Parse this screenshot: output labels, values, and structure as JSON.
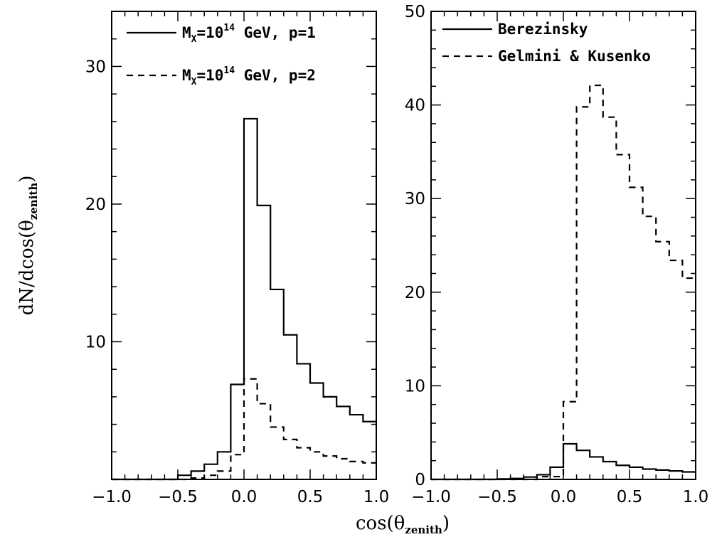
{
  "axis_titles": {
    "y": "dN/dcos(θ",
    "y_sub": "zenith",
    "y_close": ")",
    "x": "cos(θ",
    "x_sub": "zenith",
    "x_close": ")"
  },
  "chart_data": [
    {
      "type": "line",
      "step": true,
      "xlim": [
        -1.0,
        1.0
      ],
      "ylim": [
        0,
        34
      ],
      "x_ticks": [
        -1.0,
        -0.5,
        0.0,
        0.5,
        1.0
      ],
      "x_tick_labels": [
        "−1.0",
        "−0.5",
        "0.0",
        "0.5",
        "1.0"
      ],
      "y_ticks": [
        10,
        20,
        30
      ],
      "y_tick_labels": [
        "10",
        "20",
        "30"
      ],
      "bin_edges": [
        -1.0,
        -0.9,
        -0.8,
        -0.7,
        -0.6,
        -0.5,
        -0.4,
        -0.3,
        -0.2,
        -0.1,
        0.0,
        0.1,
        0.2,
        0.3,
        0.4,
        0.5,
        0.6,
        0.7,
        0.8,
        0.9,
        1.0
      ],
      "series": [
        {
          "legend": [
            "M",
            "X",
            "=10",
            "14",
            " GeV, p=1"
          ],
          "style": "solid",
          "values": [
            0.0,
            0.0,
            0.0,
            0.0,
            0.0,
            0.3,
            0.6,
            1.1,
            2.0,
            6.9,
            26.2,
            19.9,
            13.8,
            10.5,
            8.4,
            7.0,
            6.0,
            5.3,
            4.7,
            4.2
          ]
        },
        {
          "legend": [
            "M",
            "X",
            "=10",
            "14",
            " GeV, p=2"
          ],
          "style": "dashed",
          "values": [
            0.0,
            0.0,
            0.0,
            0.0,
            0.0,
            0.0,
            0.1,
            0.3,
            0.6,
            1.8,
            7.3,
            5.5,
            3.8,
            2.9,
            2.3,
            2.0,
            1.7,
            1.5,
            1.3,
            1.2
          ]
        }
      ]
    },
    {
      "type": "line",
      "step": true,
      "xlim": [
        -1.0,
        1.0
      ],
      "ylim": [
        0,
        50
      ],
      "x_ticks": [
        -1.0,
        -0.5,
        0.0,
        0.5,
        1.0
      ],
      "x_tick_labels": [
        "−1.0",
        "−0.5",
        "0.0",
        "0.5",
        "1.0"
      ],
      "y_ticks": [
        0,
        10,
        20,
        30,
        40,
        50
      ],
      "y_tick_labels": [
        "0",
        "10",
        "20",
        "30",
        "40",
        "50"
      ],
      "bin_edges": [
        -1.0,
        -0.9,
        -0.8,
        -0.7,
        -0.6,
        -0.5,
        -0.4,
        -0.3,
        -0.2,
        -0.1,
        0.0,
        0.1,
        0.2,
        0.3,
        0.4,
        0.5,
        0.6,
        0.7,
        0.8,
        0.9,
        1.0
      ],
      "series": [
        {
          "legend": [
            "Berezinsky"
          ],
          "style": "solid",
          "values": [
            0.0,
            0.0,
            0.0,
            0.0,
            0.0,
            0.05,
            0.1,
            0.25,
            0.5,
            1.3,
            3.8,
            3.1,
            2.4,
            1.9,
            1.5,
            1.3,
            1.1,
            1.0,
            0.9,
            0.8
          ]
        },
        {
          "legend": [
            "Gelmini & Kusenko"
          ],
          "style": "dashed",
          "values": [
            0.0,
            0.0,
            0.0,
            0.0,
            0.0,
            0.0,
            0.0,
            0.0,
            0.3,
            0.3,
            8.3,
            39.8,
            42.1,
            38.7,
            34.7,
            31.2,
            28.1,
            25.4,
            23.4,
            21.5
          ]
        }
      ]
    }
  ]
}
